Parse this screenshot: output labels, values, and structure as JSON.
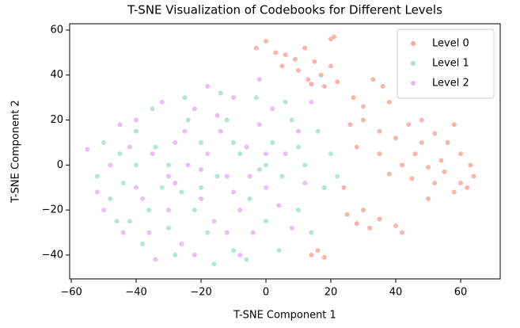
{
  "chart_data": {
    "type": "scatter",
    "title": "T-SNE Visualization of Codebooks for Different Levels",
    "x_label": "T-SNE Component 1",
    "y_label": "T-SNE Component 2",
    "xlim": [
      -60.5,
      72.2
    ],
    "ylim": [
      -50.6,
      62.8
    ],
    "xticks": [
      {
        "value": -60,
        "label": "−60"
      },
      {
        "value": -40,
        "label": "−40"
      },
      {
        "value": -20,
        "label": "−20"
      },
      0,
      20,
      40,
      60
    ],
    "yticks": [
      {
        "value": -40,
        "label": "−40"
      },
      {
        "value": -20,
        "label": "−20"
      },
      0,
      20,
      40,
      60
    ],
    "legend": "upper right",
    "series": [
      {
        "name": "Level 0",
        "color": "#f9a89c",
        "x": [
          -3,
          0,
          3,
          6,
          9,
          5,
          12,
          15,
          10,
          13,
          17,
          20,
          22,
          18,
          14,
          21,
          20,
          27,
          30,
          33,
          36,
          38,
          30,
          26,
          35,
          40,
          44,
          48,
          52,
          56,
          58,
          60,
          63,
          64,
          60,
          55,
          50,
          46,
          42,
          38,
          45,
          52,
          58,
          62,
          25,
          28,
          32,
          35,
          30,
          40,
          42,
          16,
          18,
          14,
          24,
          28,
          35,
          48,
          54,
          50
        ],
        "values": [
          52,
          55,
          50,
          49,
          47,
          44,
          52,
          46,
          42,
          38,
          40,
          44,
          37,
          35,
          36,
          57,
          56,
          30,
          26,
          38,
          35,
          28,
          20,
          18,
          15,
          12,
          18,
          20,
          14,
          10,
          18,
          5,
          0,
          -5,
          -8,
          -3,
          -1,
          5,
          0,
          -4,
          -6,
          -8,
          -12,
          -10,
          -22,
          -26,
          -28,
          -24,
          -20,
          -27,
          -30,
          -38,
          -41,
          -40,
          -10,
          8,
          5,
          10,
          2,
          -15
        ]
      },
      {
        "name": "Level 1",
        "color": "#a3e4cc",
        "x": [
          -52,
          -48,
          -45,
          -42,
          -40,
          -38,
          -35,
          -32,
          -30,
          -28,
          -25,
          -22,
          -20,
          -18,
          -15,
          -12,
          -10,
          -8,
          -5,
          -3,
          0,
          2,
          5,
          8,
          10,
          12,
          14,
          16,
          18,
          20,
          -50,
          -46,
          -36,
          -26,
          -16,
          -6,
          4,
          -24,
          -34,
          -14,
          6,
          -44,
          22,
          -2,
          -30,
          -20,
          -10,
          0,
          -40,
          10
        ],
        "values": [
          -5,
          -15,
          5,
          -25,
          15,
          -35,
          25,
          -10,
          0,
          -40,
          30,
          -20,
          10,
          -30,
          -5,
          20,
          -38,
          5,
          -15,
          30,
          -25,
          10,
          -5,
          20,
          -20,
          0,
          -30,
          15,
          -10,
          5,
          10,
          -25,
          -20,
          -12,
          -44,
          -42,
          -38,
          20,
          8,
          32,
          28,
          -8,
          -5,
          -2,
          -28,
          -10,
          10,
          0,
          0,
          8
        ]
      },
      {
        "name": "Level 2",
        "color": "#e7b3f3",
        "x": [
          -55,
          -52,
          -48,
          -45,
          -44,
          -40,
          -38,
          -35,
          -32,
          -30,
          -28,
          -26,
          -24,
          -22,
          -20,
          -18,
          -16,
          -14,
          -12,
          -10,
          -8,
          -6,
          -4,
          -2,
          0,
          2,
          4,
          6,
          8,
          10,
          12,
          -50,
          -36,
          -22,
          -8,
          -42,
          -30,
          -20,
          -10,
          0,
          -25,
          -15,
          -5,
          -18,
          -28,
          -12,
          14,
          -34,
          -40,
          -2
        ],
        "values": [
          7,
          -12,
          0,
          18,
          -30,
          20,
          -15,
          5,
          28,
          -20,
          10,
          -35,
          0,
          25,
          -15,
          5,
          -25,
          15,
          -5,
          30,
          -20,
          8,
          -30,
          18,
          -10,
          25,
          -18,
          5,
          -28,
          15,
          -8,
          -20,
          -30,
          -40,
          -40,
          8,
          -5,
          -2,
          -12,
          5,
          15,
          22,
          -5,
          35,
          -8,
          -30,
          28,
          -42,
          -10,
          38
        ]
      }
    ]
  }
}
